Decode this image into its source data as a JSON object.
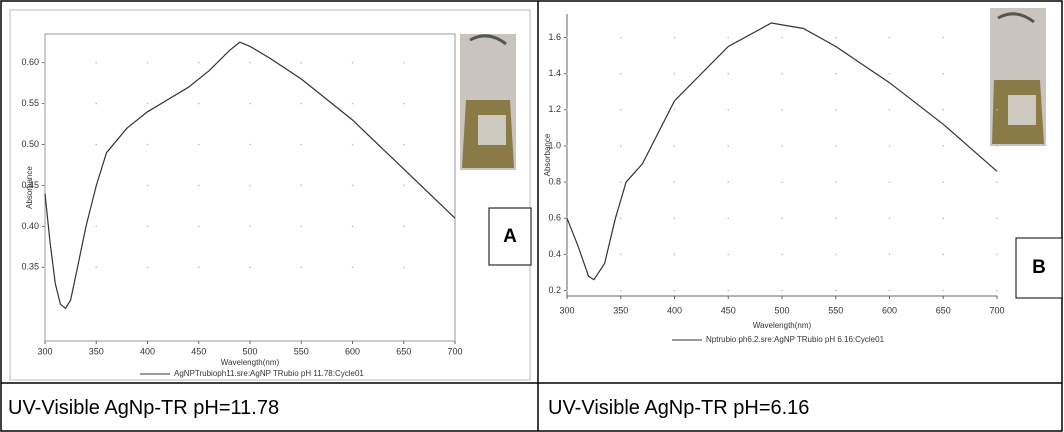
{
  "chart_data": [
    {
      "type": "line",
      "xlabel": "Wavelength(nm)",
      "ylabel": "Absorbance",
      "panel_label": "A",
      "caption": "UV-Visible AgNp-TR pH=11.78",
      "x": [
        300,
        305,
        310,
        315,
        320,
        325,
        330,
        340,
        350,
        360,
        380,
        400,
        420,
        440,
        460,
        480,
        490,
        500,
        520,
        550,
        600,
        650,
        700
      ],
      "series": [
        {
          "name": "AgNPTrubioph11.sre:AgNP  TRubio pH  11.78:Cycle01",
          "color": "#333333",
          "values": [
            0.44,
            0.38,
            0.33,
            0.305,
            0.3,
            0.31,
            0.34,
            0.4,
            0.45,
            0.49,
            0.52,
            0.54,
            0.555,
            0.57,
            0.59,
            0.615,
            0.625,
            0.62,
            0.605,
            0.58,
            0.53,
            0.47,
            0.41
          ]
        }
      ],
      "xlim": [
        300,
        700
      ],
      "xticks": [
        300,
        350,
        400,
        450,
        500,
        550,
        600,
        650,
        700
      ],
      "ylim": [
        0.26,
        0.635
      ],
      "yticks": [
        0.35,
        {
          "value": 0.4,
          "label": "0.40"
        },
        0.45,
        {
          "value": 0.5,
          "label": "0.50"
        },
        0.55,
        {
          "value": 0.6,
          "label": "0.60"
        }
      ],
      "grid": true
    },
    {
      "type": "line",
      "xlabel": "Wavelength(nm)",
      "ylabel": "Absorbance",
      "panel_label": "B",
      "caption": "UV-Visible AgNp-TR pH=6.16",
      "x": [
        300,
        310,
        320,
        325,
        335,
        345,
        355,
        370,
        400,
        450,
        490,
        520,
        550,
        600,
        650,
        700
      ],
      "series": [
        {
          "name": "Nptrubio ph6.2.sre:AgNP TRubio pH 6.16:Cycle01",
          "color": "#333333",
          "values": [
            0.6,
            0.45,
            0.28,
            0.26,
            0.35,
            0.6,
            0.8,
            0.9,
            1.25,
            1.55,
            1.68,
            1.65,
            1.55,
            1.35,
            1.12,
            0.86
          ]
        }
      ],
      "xlim": [
        300,
        700
      ],
      "xticks": [
        300,
        350,
        400,
        450,
        500,
        550,
        600,
        650,
        700
      ],
      "ylim": [
        0.17,
        1.73
      ],
      "yticks": [
        0.2,
        0.4,
        0.6,
        0.8,
        {
          "value": 1,
          "label": "1.0"
        },
        1.2,
        1.4,
        1.6
      ],
      "grid": true
    }
  ]
}
